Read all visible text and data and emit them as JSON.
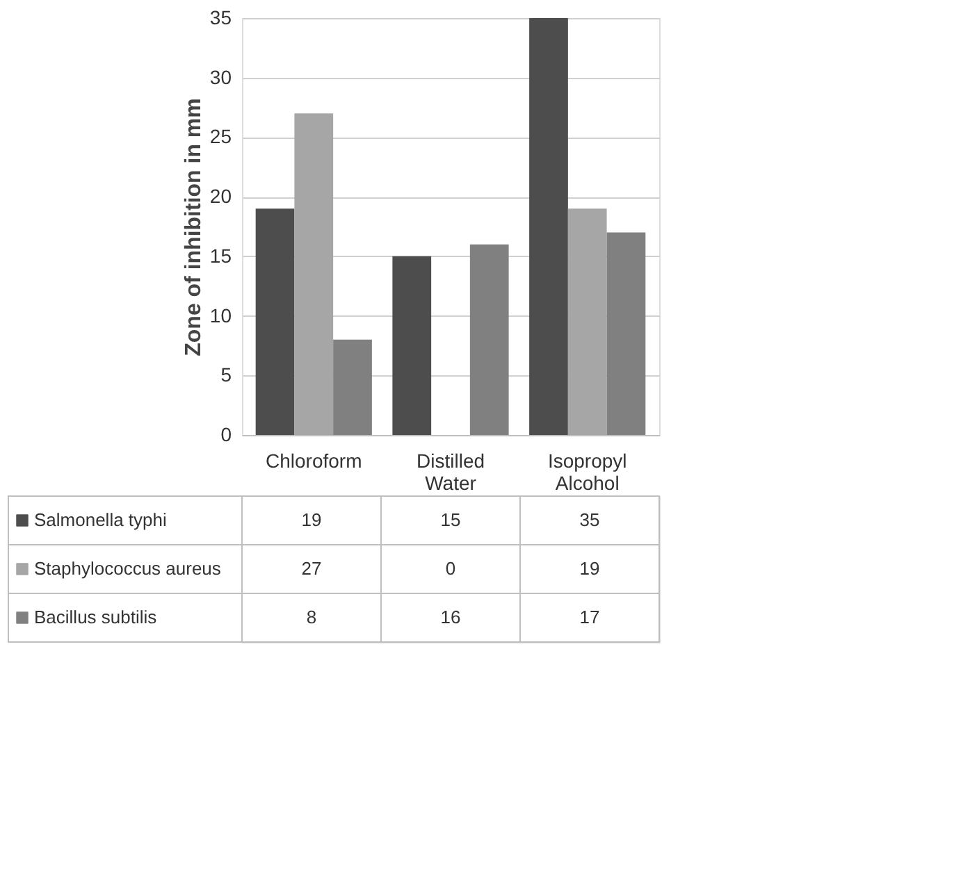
{
  "chart_data": {
    "type": "bar",
    "ylabel": "Zone of inhibition in mm",
    "categories": [
      "Chloroform",
      "Distilled Water",
      "Isopropyl Alcohol"
    ],
    "series": [
      {
        "name": "Salmonella typhi",
        "color": "#4d4d4d",
        "values": [
          19,
          15,
          35
        ]
      },
      {
        "name": "Staphylococcus aureus",
        "color": "#a6a6a6",
        "values": [
          27,
          0,
          19
        ]
      },
      {
        "name": "Bacillus subtilis",
        "color": "#808080",
        "values": [
          8,
          16,
          17
        ]
      }
    ],
    "ylim": [
      0,
      35
    ],
    "yticks": [
      0,
      5,
      10,
      15,
      20,
      25,
      30,
      35
    ],
    "grid": "y",
    "legend": "bottom left",
    "data_labels": true
  }
}
